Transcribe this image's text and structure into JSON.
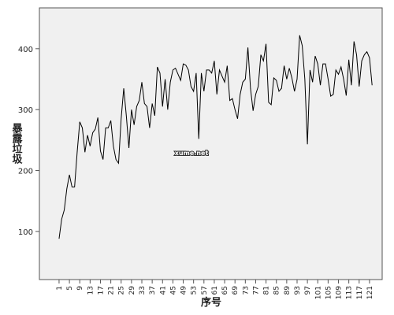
{
  "chart_data": {
    "type": "line",
    "y_label": "暴露垃圾",
    "x_label": "序号",
    "annotation": "xume.net",
    "color": "#000000",
    "x": [
      1,
      2,
      3,
      4,
      5,
      6,
      7,
      8,
      9,
      10,
      11,
      12,
      13,
      14,
      15,
      16,
      17,
      18,
      19,
      20,
      21,
      22,
      23,
      24,
      25,
      26,
      27,
      28,
      29,
      30,
      31,
      32,
      33,
      34,
      35,
      36,
      37,
      38,
      39,
      40,
      41,
      42,
      43,
      44,
      45,
      46,
      47,
      48,
      49,
      50,
      51,
      52,
      53,
      54,
      55,
      56,
      57,
      58,
      59,
      60,
      61,
      62,
      63,
      64,
      65,
      66,
      67,
      68,
      69,
      70,
      71,
      72,
      73,
      74,
      75,
      76,
      77,
      78,
      79,
      80,
      81,
      82,
      83,
      84,
      85,
      86,
      87,
      88,
      89,
      90,
      91,
      92,
      93,
      94,
      95,
      96,
      97,
      98,
      99,
      100,
      101,
      102,
      103,
      104,
      105,
      106,
      107,
      108,
      109,
      110,
      111,
      112,
      113,
      114,
      115,
      116,
      117,
      118,
      119,
      120,
      121,
      122
    ],
    "values": [
      88,
      120,
      135,
      170,
      193,
      173,
      173,
      230,
      280,
      270,
      230,
      258,
      240,
      262,
      268,
      287,
      232,
      218,
      270,
      270,
      282,
      240,
      218,
      212,
      285,
      335,
      290,
      237,
      300,
      275,
      305,
      315,
      345,
      310,
      305,
      270,
      310,
      290,
      370,
      360,
      305,
      350,
      300,
      345,
      365,
      368,
      358,
      348,
      375,
      373,
      365,
      338,
      330,
      360,
      252,
      360,
      330,
      365,
      365,
      360,
      380,
      325,
      365,
      355,
      345,
      372,
      315,
      318,
      300,
      285,
      325,
      345,
      350,
      402,
      335,
      298,
      325,
      338,
      390,
      380,
      408,
      312,
      308,
      352,
      348,
      330,
      335,
      372,
      350,
      368,
      352,
      330,
      350,
      422,
      405,
      350,
      243,
      365,
      345,
      388,
      375,
      340,
      375,
      375,
      350,
      322,
      325,
      365,
      358,
      370,
      350,
      323,
      382,
      340,
      412,
      390,
      338,
      380,
      390,
      395,
      385,
      340
    ],
    "xlim": [
      -6.6,
      125.9
    ],
    "ylim": [
      21,
      467
    ],
    "xticks": [
      1,
      5,
      9,
      13,
      17,
      21,
      25,
      29,
      33,
      37,
      41,
      45,
      49,
      53,
      57,
      61,
      65,
      69,
      73,
      77,
      81,
      85,
      89,
      93,
      97,
      101,
      105,
      109,
      113,
      117,
      121
    ],
    "yticks": [
      100,
      200,
      300,
      400
    ]
  }
}
